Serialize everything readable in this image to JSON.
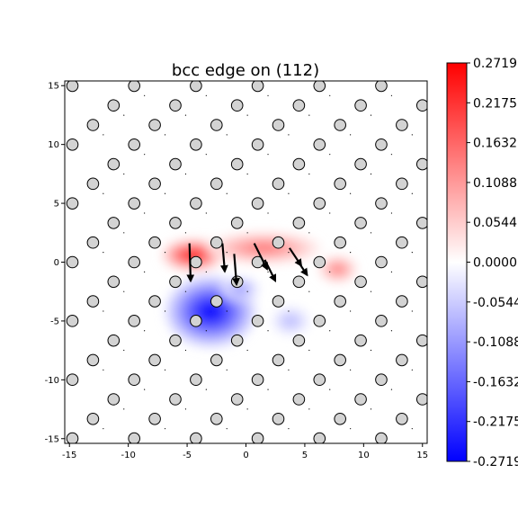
{
  "chart_data": {
    "type": "heatmap",
    "title": "bcc edge on (112)",
    "xlabel": "",
    "ylabel": "",
    "xlim": [
      -15.4,
      15.4
    ],
    "ylim": [
      -15.4,
      15.4
    ],
    "x_ticks": [
      -15,
      -10,
      -5,
      0,
      5,
      10,
      15
    ],
    "y_ticks": [
      -15,
      -10,
      -5,
      0,
      5,
      10,
      15
    ],
    "colorbar": {
      "colormap": "bwr",
      "min": -0.2719,
      "max": 0.2719,
      "ticks": [
        "0.2719",
        "0.2175",
        "0.1632",
        "0.1088",
        "0.0544",
        "0.0000",
        "-0.0544",
        "-0.1088",
        "-0.1632",
        "-0.2175",
        "-0.2719"
      ],
      "min_color": "#0000ff",
      "mid_color": "#ffffff",
      "max_color": "#ff0000"
    },
    "atoms": {
      "lattice": "triangular",
      "spacing_x": 5.25,
      "row_spacing": 1.665,
      "row_offset": 2.625,
      "marker_color": "#d3d3d3",
      "edge_color": "#000000"
    },
    "displacement_field": {
      "strain_regions": [
        {
          "sign": "positive",
          "center": [
            -4.5,
            0.6
          ],
          "spread": [
            2.6,
            1.3
          ],
          "amplitude": 0.27
        },
        {
          "sign": "positive",
          "center": [
            1.5,
            1.2
          ],
          "spread": [
            4.8,
            1.3
          ],
          "amplitude": 0.15
        },
        {
          "sign": "positive",
          "center": [
            7.8,
            -0.6
          ],
          "spread": [
            1.6,
            1.1
          ],
          "amplitude": 0.15
        },
        {
          "sign": "negative",
          "center": [
            -3.0,
            -4.2
          ],
          "spread": [
            3.8,
            3.0
          ],
          "amplitude": -0.27
        },
        {
          "sign": "negative",
          "center": [
            -0.5,
            -2.3
          ],
          "spread": [
            1.6,
            1.0
          ],
          "amplitude": -0.12
        },
        {
          "sign": "negative",
          "center": [
            3.8,
            -5.0
          ],
          "spread": [
            1.6,
            1.2
          ],
          "amplitude": -0.08
        }
      ],
      "arrows": [
        {
          "x": -4.8,
          "y": 1.6,
          "dx": 0.1,
          "dy": -3.2
        },
        {
          "x": -2.0,
          "y": 1.6,
          "dx": 0.2,
          "dy": -2.4
        },
        {
          "x": -1.0,
          "y": 0.7,
          "dx": 0.2,
          "dy": -2.6
        },
        {
          "x": 0.7,
          "y": 1.6,
          "dx": 1.1,
          "dy": -2.2
        },
        {
          "x": 1.6,
          "y": 0.2,
          "dx": 0.9,
          "dy": -1.8
        },
        {
          "x": 3.7,
          "y": 1.2,
          "dx": 1.0,
          "dy": -1.5
        },
        {
          "x": 4.4,
          "y": 0.1,
          "dx": 0.8,
          "dy": -1.2
        }
      ]
    }
  }
}
